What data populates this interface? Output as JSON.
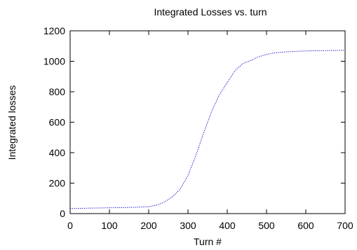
{
  "chart_data": {
    "type": "line",
    "title": "Integrated Losses vs. turn",
    "xlabel": "Turn #",
    "ylabel": "Integrated losses",
    "xlim": [
      0,
      700
    ],
    "ylim": [
      0,
      1200
    ],
    "xticks": [
      0,
      100,
      200,
      300,
      400,
      500,
      600,
      700
    ],
    "yticks": [
      0,
      200,
      400,
      600,
      800,
      1000,
      1200
    ],
    "grid": false,
    "legend": "none",
    "series": [
      {
        "color": "#0000cc",
        "style": "dotted",
        "x": [
          0,
          50,
          100,
          150,
          200,
          220,
          240,
          260,
          280,
          300,
          320,
          340,
          360,
          380,
          400,
          420,
          440,
          460,
          480,
          500,
          520,
          550,
          600,
          650,
          700
        ],
        "y": [
          33,
          36,
          38,
          40,
          45,
          55,
          75,
          110,
          160,
          250,
          380,
          530,
          670,
          780,
          860,
          940,
          985,
          1005,
          1030,
          1045,
          1055,
          1062,
          1068,
          1070,
          1072
        ]
      }
    ]
  }
}
